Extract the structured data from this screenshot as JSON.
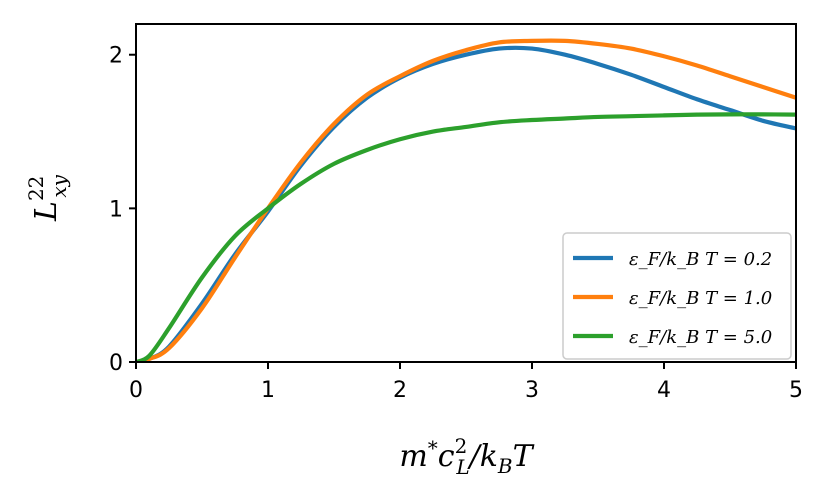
{
  "chart_data": {
    "type": "line",
    "title": "",
    "xlabel": "m*c_L^2/k_B T",
    "ylabel": "L_xy^22",
    "xlim": [
      0,
      5
    ],
    "ylim": [
      0,
      2.2
    ],
    "xticks": [
      0,
      1,
      2,
      3,
      4,
      5
    ],
    "yticks": [
      0,
      1,
      2
    ],
    "xtick_labels": [
      "0",
      "1",
      "2",
      "3",
      "4",
      "5"
    ],
    "ytick_labels": [
      "0",
      "1",
      "2"
    ],
    "grid": false,
    "legend_position": "lower-right",
    "x": [
      0,
      0.1,
      0.25,
      0.5,
      0.75,
      1.0,
      1.25,
      1.5,
      1.75,
      2.0,
      2.25,
      2.5,
      2.75,
      3.0,
      3.25,
      3.5,
      3.75,
      4.0,
      4.25,
      4.5,
      4.75,
      5.0
    ],
    "series": [
      {
        "name": "ε_F/k_B T = 0.2",
        "color": "#1f77b4",
        "values": [
          0,
          0.02,
          0.1,
          0.38,
          0.7,
          0.98,
          1.28,
          1.53,
          1.72,
          1.85,
          1.94,
          2.0,
          2.04,
          2.04,
          2.0,
          1.94,
          1.87,
          1.79,
          1.71,
          1.64,
          1.57,
          1.52
        ]
      },
      {
        "name": "ε_F/k_B T = 1.0",
        "color": "#ff7f0e",
        "values": [
          0,
          0.02,
          0.09,
          0.35,
          0.68,
          1.0,
          1.3,
          1.55,
          1.74,
          1.86,
          1.96,
          2.03,
          2.08,
          2.09,
          2.09,
          2.07,
          2.04,
          1.99,
          1.93,
          1.86,
          1.79,
          1.72
        ]
      },
      {
        "name": "ε_F/k_B T = 5.0",
        "color": "#2ca02c",
        "values": [
          0,
          0.04,
          0.22,
          0.55,
          0.82,
          1.0,
          1.16,
          1.29,
          1.38,
          1.45,
          1.5,
          1.53,
          1.56,
          1.575,
          1.585,
          1.595,
          1.6,
          1.605,
          1.61,
          1.612,
          1.612,
          1.61
        ]
      }
    ]
  }
}
